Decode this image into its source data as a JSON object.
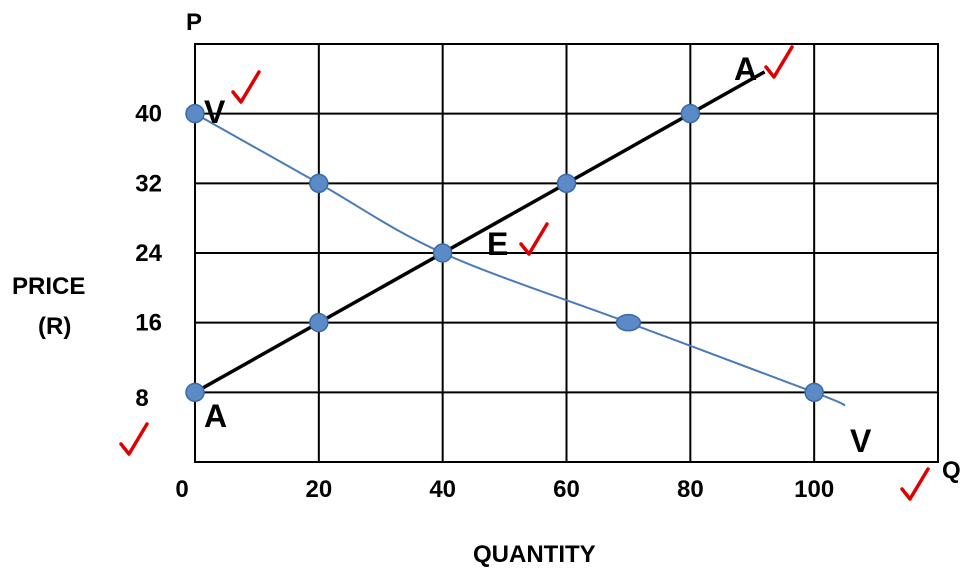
{
  "chart_data": {
    "type": "line",
    "x_axis": {
      "label": "QUANTITY",
      "end_label": "Q",
      "ticks": [
        0,
        20,
        40,
        60,
        80,
        100
      ],
      "range": [
        0,
        120
      ]
    },
    "y_axis": {
      "label_line1": "PRICE",
      "label_line2": "(R)",
      "end_label": "P",
      "ticks": [
        8,
        16,
        24,
        32,
        40
      ],
      "range": [
        0,
        48
      ]
    },
    "grid": true,
    "series": [
      {
        "name": "AA",
        "color": "#000000",
        "start_label": "A",
        "end_label": "A",
        "points": [
          [
            0,
            8
          ],
          [
            20,
            16
          ],
          [
            40,
            24
          ],
          [
            60,
            32
          ],
          [
            80,
            40
          ],
          [
            92,
            44.8
          ]
        ]
      },
      {
        "name": "VV",
        "color": "#4a7bb7",
        "start_label": "V",
        "end_label": "V",
        "points": [
          [
            0,
            40
          ],
          [
            20,
            32
          ],
          [
            40,
            24
          ],
          [
            70,
            16
          ],
          [
            100,
            8
          ],
          [
            105,
            6.5
          ]
        ]
      }
    ],
    "equilibrium": {
      "label": "E",
      "x": 40,
      "y": 24
    },
    "markers": [
      {
        "series": "AA",
        "x": 0,
        "y": 8
      },
      {
        "series": "AA",
        "x": 20,
        "y": 16
      },
      {
        "series": "AA",
        "x": 60,
        "y": 32
      },
      {
        "series": "AA",
        "x": 80,
        "y": 40
      },
      {
        "series": "VV",
        "x": 0,
        "y": 40
      },
      {
        "series": "VV",
        "x": 20,
        "y": 32
      },
      {
        "series": "VV",
        "x": 40,
        "y": 24
      },
      {
        "series": "VV",
        "x": 70,
        "y": 16
      },
      {
        "series": "VV",
        "x": 100,
        "y": 8
      }
    ],
    "marker_color": "#5b8ac6",
    "check_color": "#e00000"
  }
}
